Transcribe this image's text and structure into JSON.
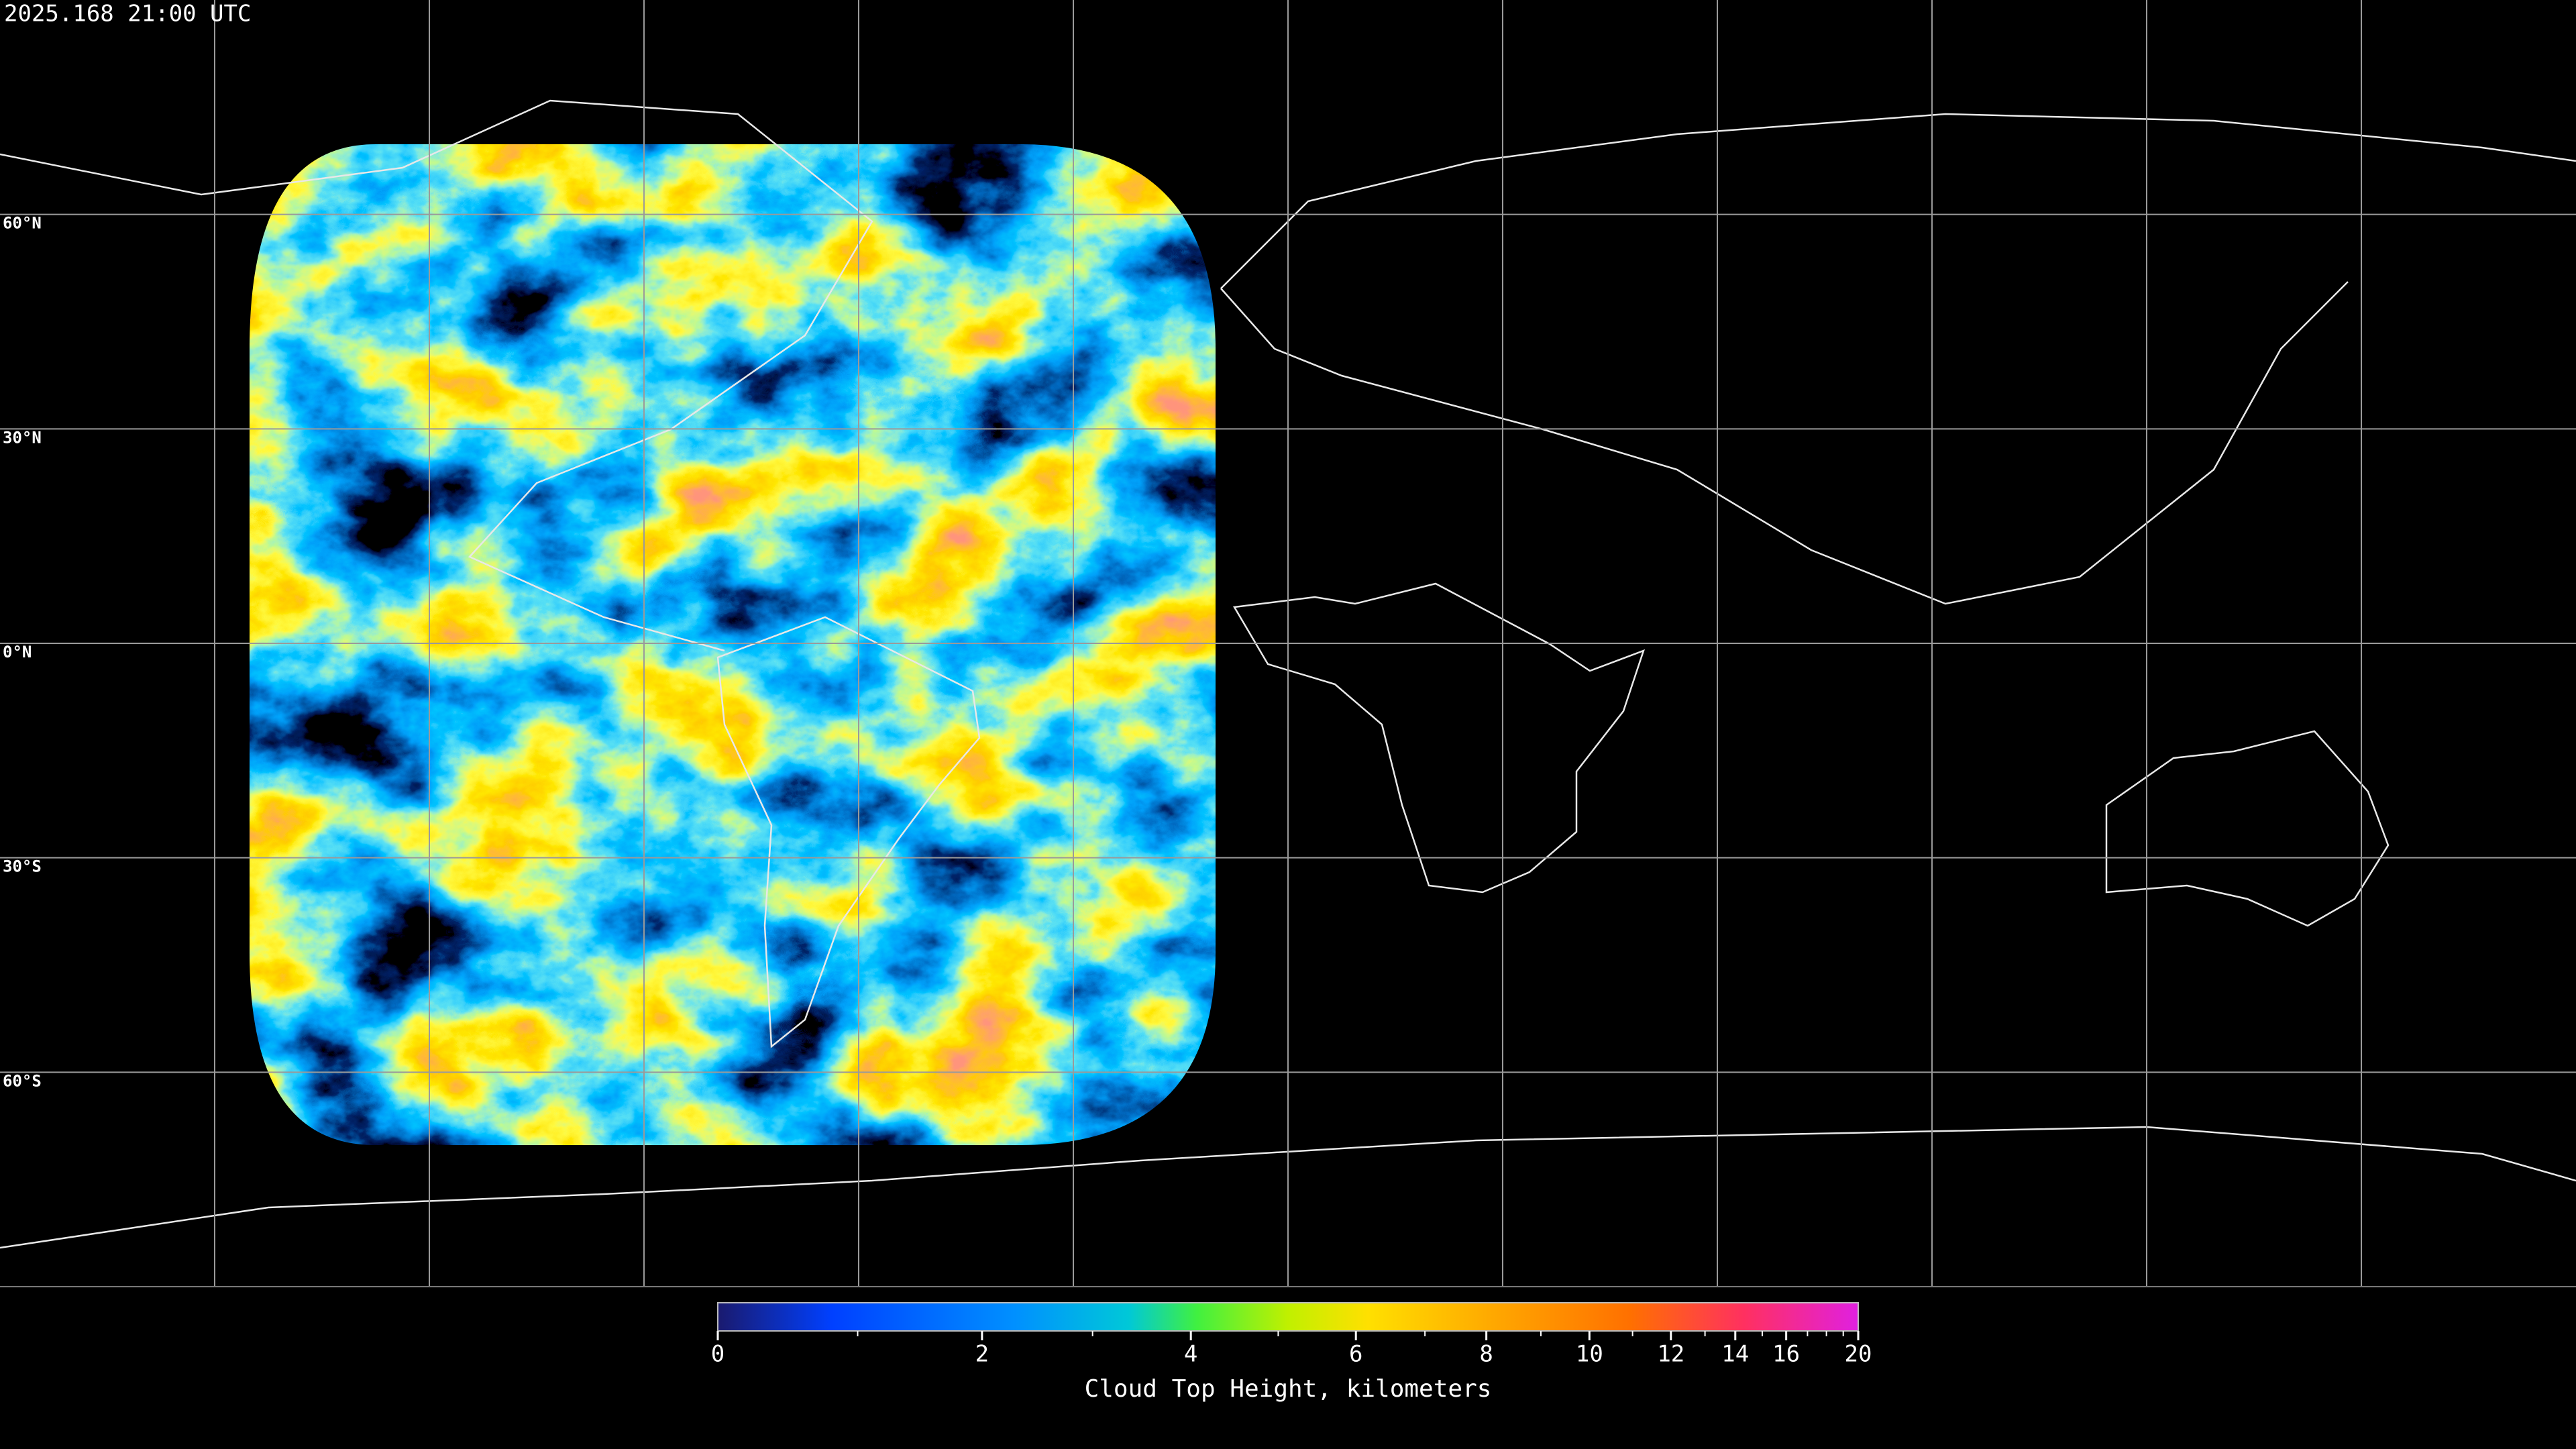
{
  "header": {
    "timestamp": "2025.168 21:00 UTC"
  },
  "map": {
    "lat_lines": [
      {
        "value": 60,
        "label": "60°N"
      },
      {
        "value": 30,
        "label": "30°N"
      },
      {
        "value": 0,
        "label": "0°N"
      },
      {
        "value": -30,
        "label": "30°S"
      },
      {
        "value": -60,
        "label": "60°S"
      }
    ],
    "lon_lines": [
      -150,
      -120,
      -90,
      -60,
      -30,
      0,
      30,
      60,
      90,
      120,
      150
    ]
  },
  "colorbar": {
    "label": "Cloud Top Height, kilometers",
    "range": [
      0,
      20
    ],
    "ticks": [
      0,
      2,
      4,
      6,
      8,
      10,
      12,
      14,
      16,
      20
    ],
    "minor_ticks": [
      1,
      3,
      5,
      7,
      9,
      11,
      13,
      15,
      17,
      18,
      19
    ]
  }
}
